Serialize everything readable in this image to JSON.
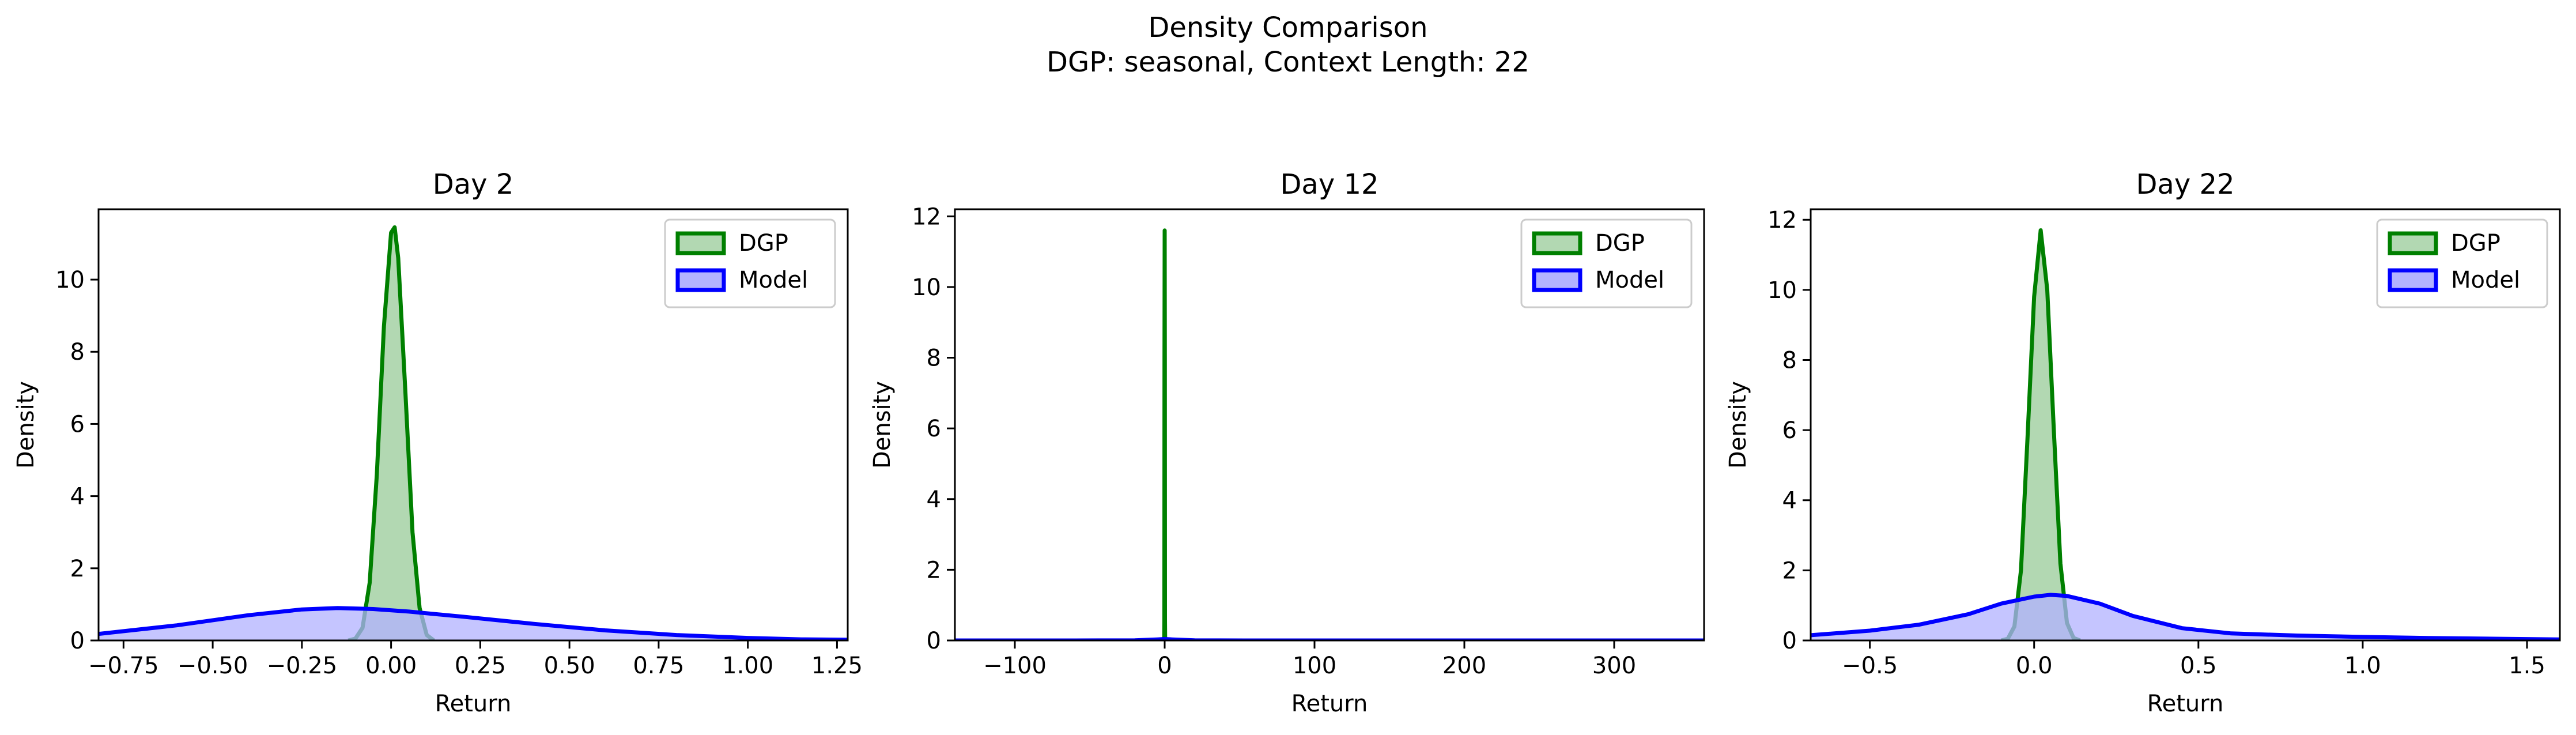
{
  "figure": {
    "suptitle_line1": "Density Comparison",
    "suptitle_line2": "DGP: seasonal, Context Length: 22"
  },
  "colors": {
    "dgp_line": "#008000",
    "dgp_fill": "#b2d8b2",
    "model_line": "#0000ff",
    "model_fill": "#b2b2ff",
    "axes": "#000000"
  },
  "chart_data": [
    {
      "type": "area",
      "title": "Day 2",
      "xlabel": "Return",
      "ylabel": "Density",
      "xlim": [
        -0.82,
        1.28
      ],
      "ylim": [
        0,
        11.95
      ],
      "xticks": [
        -0.75,
        -0.5,
        -0.25,
        0.0,
        0.25,
        0.5,
        0.75,
        1.0,
        1.25
      ],
      "xtick_labels": [
        "−0.75",
        "−0.50",
        "−0.25",
        "0.00",
        "0.25",
        "0.50",
        "0.75",
        "1.00",
        "1.25"
      ],
      "yticks": [
        0,
        2,
        4,
        6,
        8,
        10
      ],
      "ytick_labels": [
        "0",
        "2",
        "4",
        "6",
        "8",
        "10"
      ],
      "legend_position": "top-right",
      "series": [
        {
          "name": "DGP",
          "x": [
            -0.12,
            -0.1,
            -0.08,
            -0.06,
            -0.04,
            -0.02,
            0.0,
            0.01,
            0.02,
            0.04,
            0.06,
            0.08,
            0.1,
            0.12
          ],
          "y": [
            0.0,
            0.05,
            0.35,
            1.6,
            4.6,
            8.7,
            11.3,
            11.45,
            10.6,
            6.9,
            3.0,
            0.9,
            0.15,
            0.0
          ]
        },
        {
          "name": "Model",
          "x": [
            -0.82,
            -0.6,
            -0.4,
            -0.25,
            -0.15,
            -0.05,
            0.05,
            0.2,
            0.4,
            0.6,
            0.8,
            1.0,
            1.15,
            1.28
          ],
          "y": [
            0.18,
            0.42,
            0.7,
            0.86,
            0.9,
            0.87,
            0.8,
            0.66,
            0.46,
            0.28,
            0.15,
            0.07,
            0.03,
            0.02
          ]
        }
      ]
    },
    {
      "type": "area",
      "title": "Day 12",
      "xlabel": "Return",
      "ylabel": "Density",
      "xlim": [
        -140,
        360
      ],
      "ylim": [
        0,
        12.2
      ],
      "xticks": [
        -100,
        0,
        100,
        200,
        300
      ],
      "xtick_labels": [
        "−100",
        "0",
        "100",
        "200",
        "300"
      ],
      "yticks": [
        0,
        2,
        4,
        6,
        8,
        10,
        12
      ],
      "ytick_labels": [
        "0",
        "2",
        "4",
        "6",
        "8",
        "10",
        "12"
      ],
      "legend_position": "top-right",
      "series": [
        {
          "name": "DGP",
          "x": [
            -0.3,
            -0.2,
            -0.1,
            0.0,
            0.1,
            0.2,
            0.3
          ],
          "y": [
            0.0,
            0.6,
            8.0,
            11.6,
            8.0,
            0.6,
            0.0
          ]
        },
        {
          "name": "Model",
          "x": [
            -140,
            -60,
            -20,
            -5,
            0,
            5,
            20,
            60,
            150,
            360
          ],
          "y": [
            0.0,
            0.0,
            0.004,
            0.03,
            0.04,
            0.03,
            0.004,
            0.0,
            0.0,
            0.0
          ]
        }
      ]
    },
    {
      "type": "area",
      "title": "Day 22",
      "xlabel": "Return",
      "ylabel": "Density",
      "xlim": [
        -0.68,
        1.6
      ],
      "ylim": [
        0,
        12.3
      ],
      "xticks": [
        -0.5,
        0.0,
        0.5,
        1.0,
        1.5
      ],
      "xtick_labels": [
        "−0.5",
        "0.0",
        "0.5",
        "1.0",
        "1.5"
      ],
      "yticks": [
        0,
        2,
        4,
        6,
        8,
        10,
        12
      ],
      "ytick_labels": [
        "0",
        "2",
        "4",
        "6",
        "8",
        "10",
        "12"
      ],
      "legend_position": "top-right",
      "series": [
        {
          "name": "DGP",
          "x": [
            -0.1,
            -0.08,
            -0.06,
            -0.04,
            -0.02,
            0.0,
            0.02,
            0.04,
            0.06,
            0.08,
            0.1,
            0.12,
            0.14
          ],
          "y": [
            0.0,
            0.05,
            0.4,
            2.0,
            5.8,
            9.8,
            11.7,
            10.0,
            6.0,
            2.2,
            0.5,
            0.07,
            0.0
          ]
        },
        {
          "name": "Model",
          "x": [
            -0.68,
            -0.5,
            -0.35,
            -0.2,
            -0.1,
            0.0,
            0.05,
            0.1,
            0.2,
            0.3,
            0.45,
            0.6,
            0.8,
            1.0,
            1.2,
            1.4,
            1.6
          ],
          "y": [
            0.15,
            0.28,
            0.45,
            0.75,
            1.05,
            1.25,
            1.3,
            1.27,
            1.05,
            0.7,
            0.35,
            0.2,
            0.14,
            0.1,
            0.07,
            0.05,
            0.03
          ]
        }
      ]
    }
  ]
}
